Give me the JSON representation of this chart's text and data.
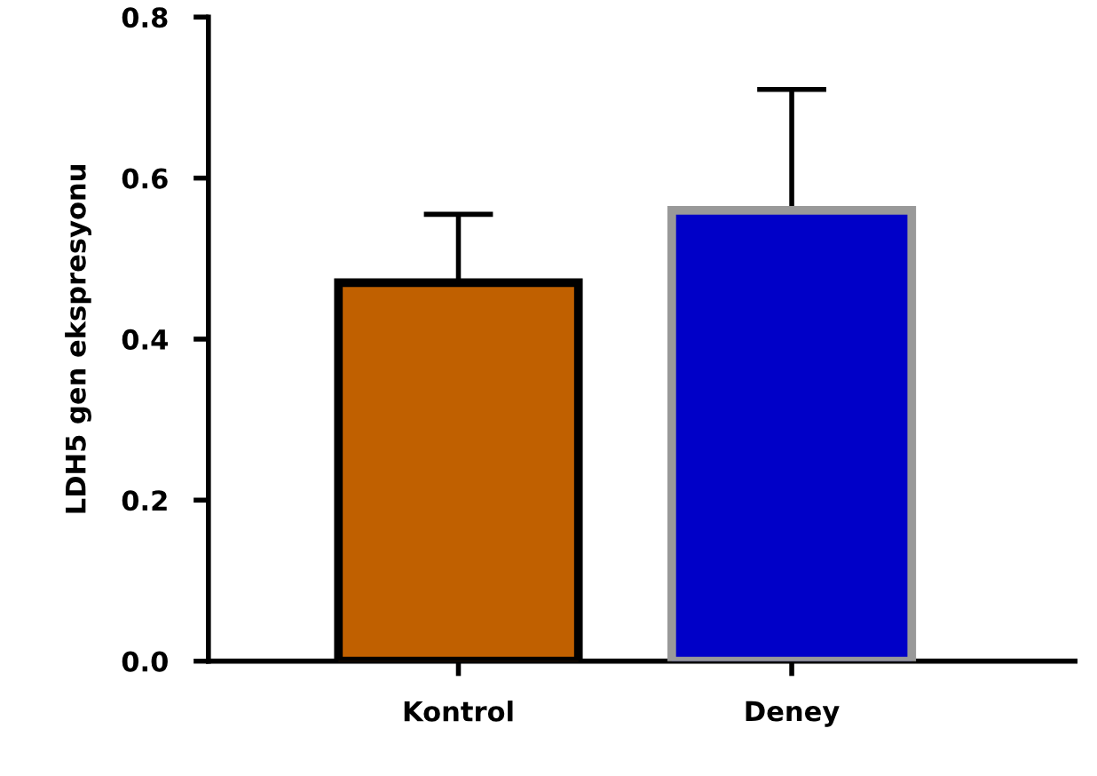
{
  "chart_data": {
    "type": "bar",
    "ylabel": "LDH5 gen ekspresyonu",
    "categories": [
      "Kontrol",
      "Deney"
    ],
    "values": [
      0.47,
      0.56
    ],
    "colors": [
      "#c06000",
      "#0000c8"
    ],
    "errors": [
      [
        0.47,
        0.555
      ],
      [
        0.56,
        0.71
      ]
    ],
    "ylim": [
      0,
      0.8
    ],
    "yticks": [
      {
        "value": 0,
        "label": "0.0"
      },
      0.2,
      0.4,
      0.6,
      0.8
    ],
    "grid": false
  }
}
